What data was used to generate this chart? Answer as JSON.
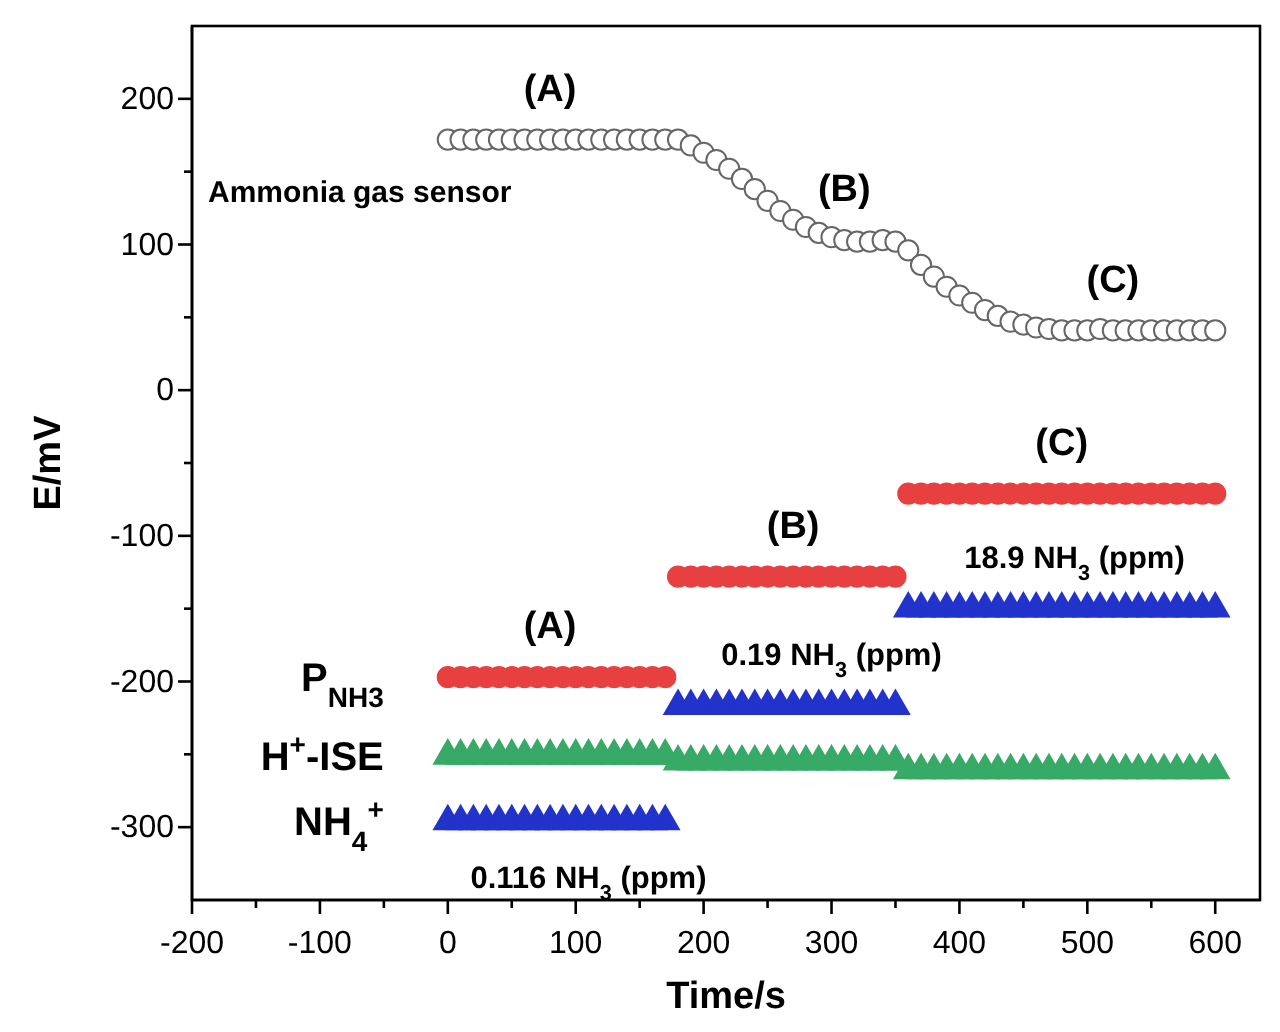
{
  "chart_data": {
    "type": "scatter",
    "xlabel": "Time/s",
    "ylabel": "E/mV",
    "xlim": [
      -200,
      635
    ],
    "ylim": [
      -350,
      250
    ],
    "xticks": [
      -200,
      {
        "value": -150,
        "label": null
      },
      -100,
      {
        "value": -50,
        "label": null
      },
      0,
      {
        "value": 50,
        "label": null
      },
      100,
      {
        "value": 150,
        "label": null
      },
      200,
      {
        "value": 250,
        "label": null
      },
      300,
      {
        "value": 350,
        "label": null
      },
      400,
      {
        "value": 450,
        "label": null
      },
      500,
      {
        "value": 550,
        "label": null
      },
      600
    ],
    "yticks": [
      -300,
      {
        "value": -250,
        "label": null
      },
      -200,
      {
        "value": -150,
        "label": null
      },
      -100,
      {
        "value": -50,
        "label": null
      },
      0,
      {
        "value": 50,
        "label": null
      },
      100,
      {
        "value": 150,
        "label": null
      },
      200
    ],
    "grid": false,
    "legend": false,
    "x": [
      0,
      10,
      20,
      30,
      40,
      50,
      60,
      70,
      80,
      90,
      100,
      110,
      120,
      130,
      140,
      150,
      160,
      170,
      180,
      190,
      200,
      210,
      220,
      230,
      240,
      250,
      260,
      270,
      280,
      290,
      300,
      310,
      320,
      330,
      340,
      350,
      360,
      370,
      380,
      390,
      400,
      410,
      420,
      430,
      440,
      450,
      460,
      470,
      480,
      490,
      500,
      510,
      520,
      530,
      540,
      550,
      560,
      570,
      580,
      590,
      600
    ],
    "series": [
      {
        "name": "Ammonia gas sensor",
        "marker": "circle",
        "color": "#ffffff",
        "values": [
          172,
          172,
          172,
          172,
          172,
          172,
          172,
          172,
          172,
          172,
          172,
          172,
          172,
          172,
          172,
          172,
          172,
          172,
          172,
          168,
          163,
          158,
          152,
          145,
          138,
          130,
          123,
          117,
          112,
          108,
          105,
          103,
          102,
          102,
          103,
          102,
          96,
          86,
          78,
          71,
          65,
          60,
          55,
          51,
          47,
          45,
          43,
          42,
          41,
          41,
          41,
          42,
          41,
          41,
          41,
          41,
          41,
          41,
          41,
          41,
          41
        ]
      },
      {
        "name": "P$_{NH3}$",
        "marker": "circle",
        "color": "#e84040",
        "values": [
          -197,
          -197,
          -197,
          -197,
          -197,
          -197,
          -197,
          -197,
          -197,
          -197,
          -197,
          -197,
          -197,
          -197,
          -197,
          -197,
          -197,
          -197,
          -128,
          -128,
          -128,
          -128,
          -128,
          -128,
          -128,
          -128,
          -128,
          -128,
          -128,
          -128,
          -128,
          -128,
          -128,
          -128,
          -128,
          -128,
          -71,
          -71,
          -71,
          -71,
          -71,
          -71,
          -71,
          -71,
          -71,
          -71,
          -71,
          -71,
          -71,
          -71,
          -71,
          -71,
          -71,
          -71,
          -71,
          -71,
          -71,
          -71,
          -71,
          -71,
          -71
        ]
      },
      {
        "name": "H$^{+}$-ISE",
        "marker": "triangle",
        "color": "#36aa66",
        "values": [
          -251,
          -251,
          -251,
          -251,
          -251,
          -251,
          -251,
          -251,
          -251,
          -251,
          -251,
          -251,
          -251,
          -251,
          -251,
          -251,
          -251,
          -251,
          -255,
          -255,
          -255,
          -255,
          -255,
          -255,
          -255,
          -255,
          -255,
          -255,
          -255,
          -255,
          -255,
          -255,
          -255,
          -255,
          -255,
          -255,
          -261,
          -261,
          -261,
          -261,
          -261,
          -261,
          -261,
          -261,
          -261,
          -261,
          -261,
          -261,
          -261,
          -261,
          -261,
          -261,
          -261,
          -261,
          -261,
          -261,
          -261,
          -261,
          -261,
          -261,
          -261
        ]
      },
      {
        "name": "NH$_{4}$$^{+}$",
        "marker": "triangle",
        "color": "#2233cc",
        "values": [
          -296,
          -296,
          -296,
          -296,
          -296,
          -296,
          -296,
          -296,
          -296,
          -296,
          -296,
          -296,
          -296,
          -296,
          -296,
          -296,
          -296,
          -296,
          -217,
          -217,
          -217,
          -217,
          -217,
          -217,
          -217,
          -217,
          -217,
          -217,
          -217,
          -217,
          -217,
          -217,
          -217,
          -217,
          -217,
          -217,
          -150,
          -150,
          -150,
          -150,
          -150,
          -150,
          -150,
          -150,
          -150,
          -150,
          -150,
          -150,
          -150,
          -150,
          -150,
          -150,
          -150,
          -150,
          -150,
          -150,
          -150,
          -150,
          -150,
          -150,
          -150
        ]
      }
    ],
    "annotations": [
      {
        "text": "(A)",
        "x": 80,
        "y": 172
      },
      {
        "text": "(B)",
        "x": 310,
        "y": 103
      },
      {
        "text": "(C)",
        "x": 520,
        "y": 41
      },
      {
        "text": "(A)",
        "x": 80,
        "y": -197
      },
      {
        "text": "(B)",
        "x": 270,
        "y": -128
      },
      {
        "text": "(C)",
        "x": 480,
        "y": -71
      },
      {
        "text": "0.116 NH$_{3}$ (ppm)",
        "x": 110,
        "y": -296
      },
      {
        "text": "0.19 NH$_{3}$ (ppm)",
        "x": 300,
        "y": -217
      },
      {
        "text": "18.9 NH$_{3}$ (ppm)",
        "x": 490,
        "y": -150
      }
    ]
  }
}
